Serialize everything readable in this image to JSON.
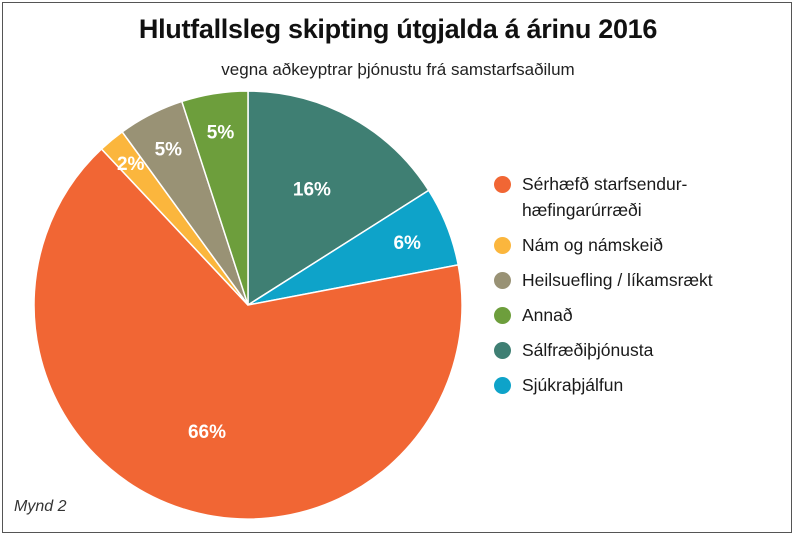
{
  "figure_label": "Mynd 2",
  "chart_data": {
    "type": "pie",
    "title": "Hlutfallsleg skipting útgjalda á árinu 2016",
    "subtitle": "vegna aðkeyptrar þjónustu frá samstarfsaðilum",
    "legend_position": "right",
    "slices": [
      {
        "label": "Sérhæfð starfsendur-hæfingarúrræði",
        "value": 66,
        "value_label": "66%",
        "color": "#f16634"
      },
      {
        "label": "Nám og námskeið",
        "value": 2,
        "value_label": "2%",
        "color": "#fbb63d"
      },
      {
        "label": "Heilsuefling / líkamsrækt",
        "value": 5,
        "value_label": "5%",
        "color": "#999275"
      },
      {
        "label": "Annað",
        "value": 5,
        "value_label": "5%",
        "color": "#6d9e3c"
      },
      {
        "label": "Sálfræðiþjónusta",
        "value": 16,
        "value_label": "16%",
        "color": "#3f7f73"
      },
      {
        "label": "Sjúkraþjálfun",
        "value": 6,
        "value_label": "6%",
        "color": "#0ea3c9"
      }
    ]
  }
}
